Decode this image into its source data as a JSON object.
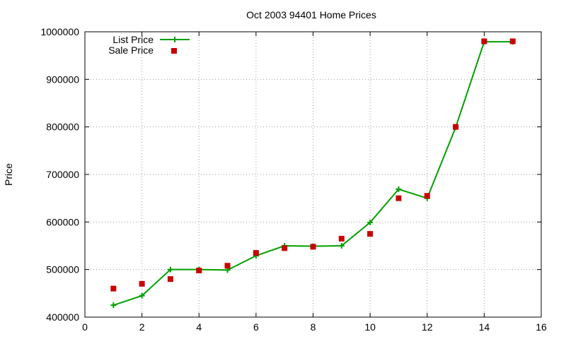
{
  "chart_data": {
    "type": "line",
    "title": "Oct 2003 94401 Home Prices",
    "xlabel": "",
    "ylabel": "Price",
    "xlim": [
      0,
      16
    ],
    "ylim": [
      400000,
      1000000
    ],
    "xticks": [
      0,
      2,
      4,
      6,
      8,
      10,
      12,
      14,
      16
    ],
    "yticks": [
      400000,
      500000,
      600000,
      700000,
      800000,
      900000,
      1000000
    ],
    "grid": true,
    "legend_position": "top-left",
    "series": [
      {
        "name": "List Price",
        "style": "line-with-plus-markers",
        "color": "#00a000",
        "x": [
          1,
          2,
          3,
          4,
          5,
          6,
          7,
          8,
          9,
          10,
          11,
          12,
          13,
          14,
          15
        ],
        "y": [
          425000,
          445000,
          500000,
          500000,
          499000,
          529000,
          550000,
          549000,
          550000,
          599000,
          669000,
          650000,
          799000,
          979000,
          979000
        ]
      },
      {
        "name": "Sale Price",
        "style": "square-markers",
        "color": "#c80000",
        "x": [
          1,
          2,
          3,
          4,
          5,
          6,
          7,
          8,
          9,
          10,
          11,
          12,
          13,
          14,
          15
        ],
        "y": [
          460000,
          470000,
          480000,
          498000,
          508000,
          535000,
          545000,
          548000,
          565000,
          575000,
          650000,
          655000,
          800000,
          980000,
          980000
        ]
      }
    ]
  }
}
